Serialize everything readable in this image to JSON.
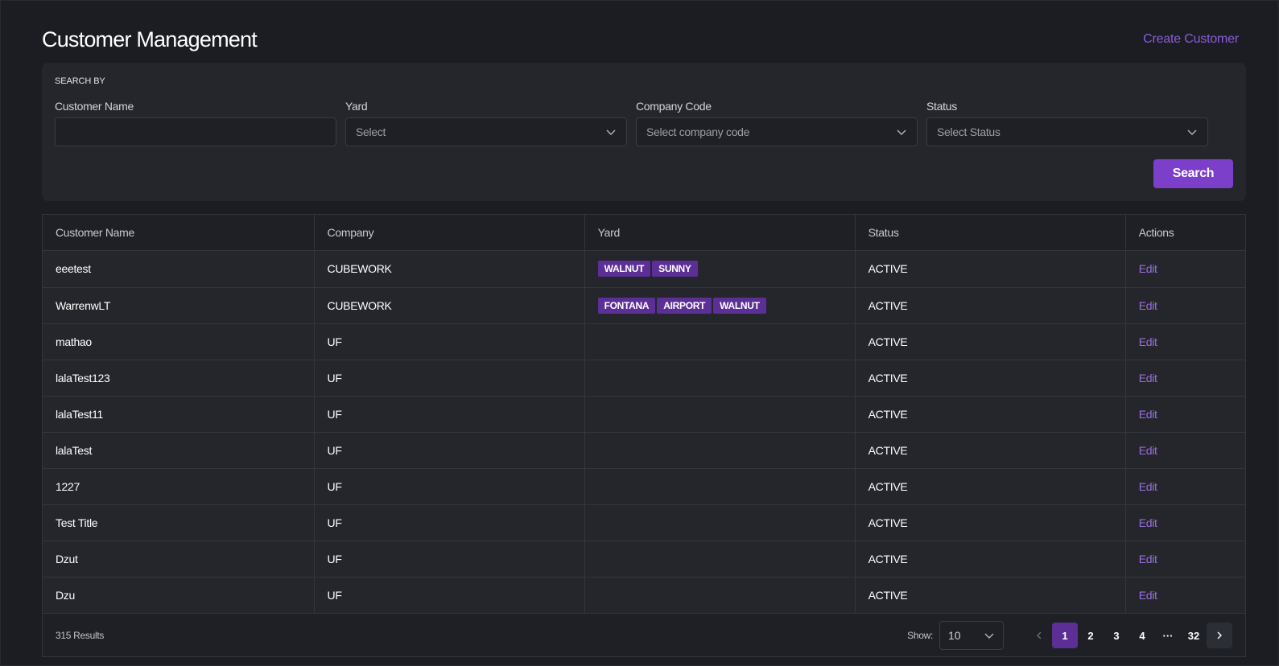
{
  "header": {
    "title": "Customer Management",
    "create_label": "Create Customer"
  },
  "search": {
    "section_label": "SEARCH BY",
    "customer_name": {
      "label": "Customer Name",
      "value": "",
      "placeholder": ""
    },
    "yard": {
      "label": "Yard",
      "placeholder": "Select"
    },
    "company_code": {
      "label": "Company Code",
      "placeholder": "Select company code"
    },
    "status": {
      "label": "Status",
      "placeholder": "Select Status"
    },
    "button_label": "Search"
  },
  "table": {
    "columns": [
      "Customer Name",
      "Company",
      "Yard",
      "Status",
      "Actions"
    ],
    "rows": [
      {
        "name": "eeetest",
        "company": "CUBEWORK",
        "yards": [
          "WALNUT",
          "SUNNY"
        ],
        "status": "ACTIVE",
        "action": "Edit"
      },
      {
        "name": "WarrenwLT",
        "company": "CUBEWORK",
        "yards": [
          "FONTANA",
          "AIRPORT",
          "WALNUT"
        ],
        "status": "ACTIVE",
        "action": "Edit"
      },
      {
        "name": "mathao",
        "company": "UF",
        "yards": [],
        "status": "ACTIVE",
        "action": "Edit"
      },
      {
        "name": "lalaTest123",
        "company": "UF",
        "yards": [],
        "status": "ACTIVE",
        "action": "Edit"
      },
      {
        "name": "lalaTest11",
        "company": "UF",
        "yards": [],
        "status": "ACTIVE",
        "action": "Edit"
      },
      {
        "name": "lalaTest",
        "company": "UF",
        "yards": [],
        "status": "ACTIVE",
        "action": "Edit"
      },
      {
        "name": "1227",
        "company": "UF",
        "yards": [],
        "status": "ACTIVE",
        "action": "Edit"
      },
      {
        "name": "Test Title",
        "company": "UF",
        "yards": [],
        "status": "ACTIVE",
        "action": "Edit"
      },
      {
        "name": "Dzut",
        "company": "UF",
        "yards": [],
        "status": "ACTIVE",
        "action": "Edit"
      },
      {
        "name": "Dzu",
        "company": "UF",
        "yards": [],
        "status": "ACTIVE",
        "action": "Edit"
      }
    ]
  },
  "footer": {
    "results": "315 Results",
    "show_label": "Show:",
    "page_size": "10",
    "pages": [
      "1",
      "2",
      "3",
      "4",
      "···",
      "32"
    ],
    "current_page": "1"
  },
  "colors": {
    "accent": "#7b3fc9",
    "tag": "#5b2f96",
    "background": "#1c1d22",
    "panel": "#24262c"
  },
  "icons": {
    "dropdown": "chevron-down-icon",
    "prev": "chevron-left-icon",
    "next": "chevron-right-icon"
  }
}
